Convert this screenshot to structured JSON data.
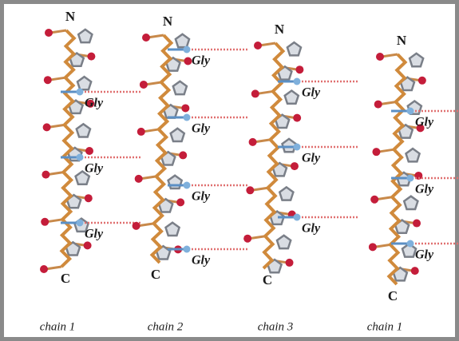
{
  "chains": [
    {
      "label": "chain 1",
      "n_term": "N",
      "c_term": "C",
      "gly": [
        "Gly",
        "Gly",
        "Gly"
      ]
    },
    {
      "label": "chain 2",
      "n_term": "N",
      "c_term": "C",
      "gly": [
        "Gly",
        "Gly",
        "Gly",
        "Gly"
      ]
    },
    {
      "label": "chain 3",
      "n_term": "N",
      "c_term": "C",
      "gly": [
        "Gly",
        "Gly",
        "Gly"
      ]
    },
    {
      "label": "chain 1",
      "n_term": "N",
      "c_term": "C",
      "gly": [
        "Gly",
        "Gly",
        "Gly"
      ]
    }
  ]
}
